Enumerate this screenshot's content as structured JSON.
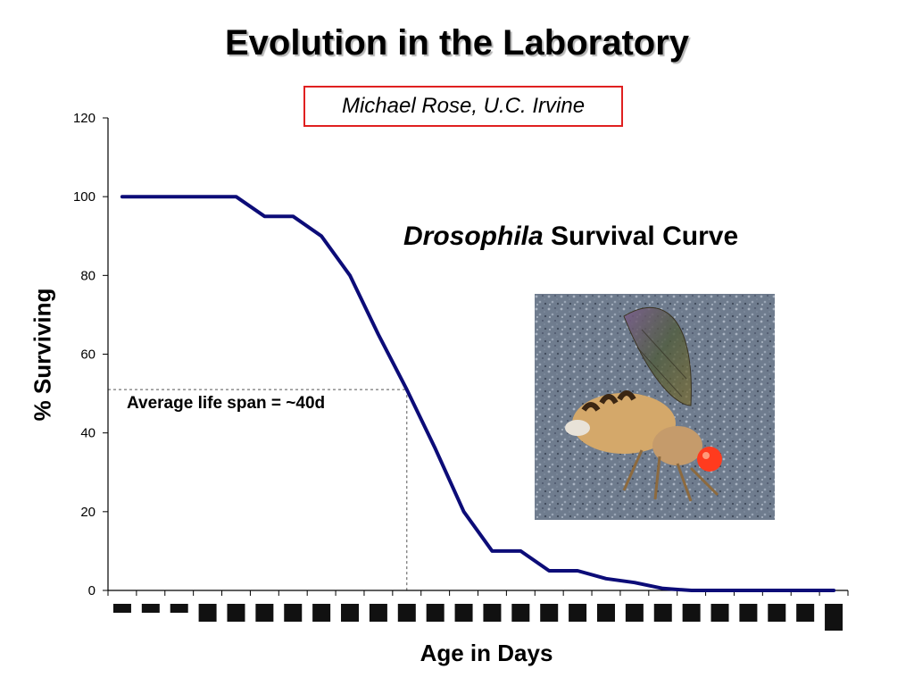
{
  "slide": {
    "title": "Evolution in the Laboratory",
    "author": "Michael Rose, U.C. Irvine",
    "subtitle_italic": "Drosophila",
    "subtitle_rest": " Survival Curve"
  },
  "photo": {
    "subject": "fruit fly",
    "icon": "fly-photo"
  },
  "chart_data": {
    "type": "line",
    "title": "",
    "xlabel": "Age in Days",
    "ylabel": "% Surviving",
    "ylim": [
      0,
      120
    ],
    "yticks": [
      0,
      20,
      40,
      60,
      80,
      100,
      120
    ],
    "x_tick_labels_obscured": true,
    "n_categories": 26,
    "series": [
      {
        "color": "#0c0c78",
        "values": [
          100,
          100,
          100,
          100,
          100,
          95,
          95,
          90,
          80,
          65,
          51,
          36,
          20,
          10,
          10,
          5,
          5,
          3,
          2,
          0.5,
          0,
          0,
          0,
          0,
          0,
          0
        ]
      }
    ],
    "annotation": {
      "text": "Average life span = ~40d",
      "x_index": 10,
      "y": 51
    },
    "grid": false,
    "legend": "none"
  }
}
